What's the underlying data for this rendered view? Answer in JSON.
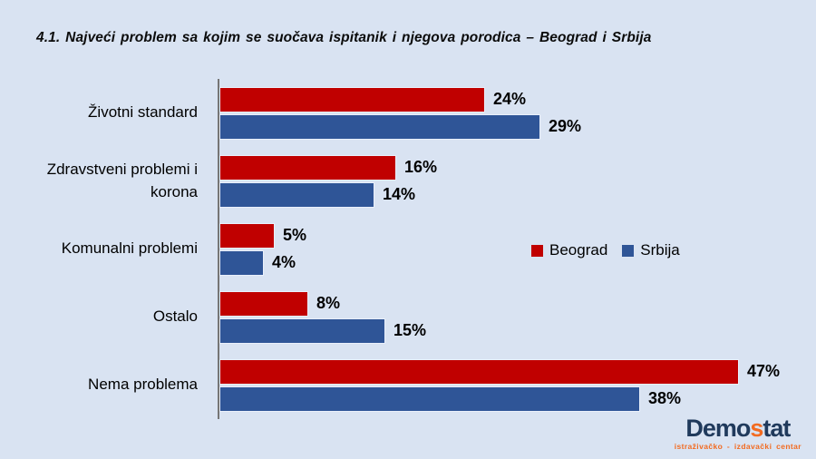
{
  "title": "4.1. Najveći problem sa kojim se suočava ispitanik i njegova porodica – Beograd i Srbija",
  "chart_data": {
    "type": "bar",
    "orientation": "horizontal",
    "title": "4.1. Najveći problem sa kojim se suočava ispitanik i njegova porodica – Beograd i Srbija",
    "categories": [
      "Životni standard",
      "Zdravstveni problemi i korona",
      "Komunalni problemi",
      "Ostalo",
      "Nema problema"
    ],
    "series": [
      {
        "name": "Beograd",
        "color": "#C00000",
        "values": [
          24,
          16,
          5,
          8,
          47
        ]
      },
      {
        "name": "Srbija",
        "color": "#2F5597",
        "values": [
          29,
          14,
          4,
          15,
          38
        ]
      }
    ],
    "value_suffix": "%",
    "xlim": [
      0,
      47
    ],
    "grid": false,
    "legend_position": "middle-right",
    "data_labels": true
  },
  "legend": {
    "items": [
      {
        "label": "Beograd",
        "color": "#C00000"
      },
      {
        "label": "Srbija",
        "color": "#2F5597"
      }
    ]
  },
  "logo": {
    "prefix": "Demo",
    "accent": "s",
    "suffix": "tat",
    "tagline": "istraživačko - izdavački centar"
  },
  "colors": {
    "background": "#D9E3F2",
    "axis_line": "#757575",
    "beograd": "#C00000",
    "srbija": "#2F5597",
    "logo_navy": "#203a5c",
    "logo_orange": "#f26b21"
  }
}
